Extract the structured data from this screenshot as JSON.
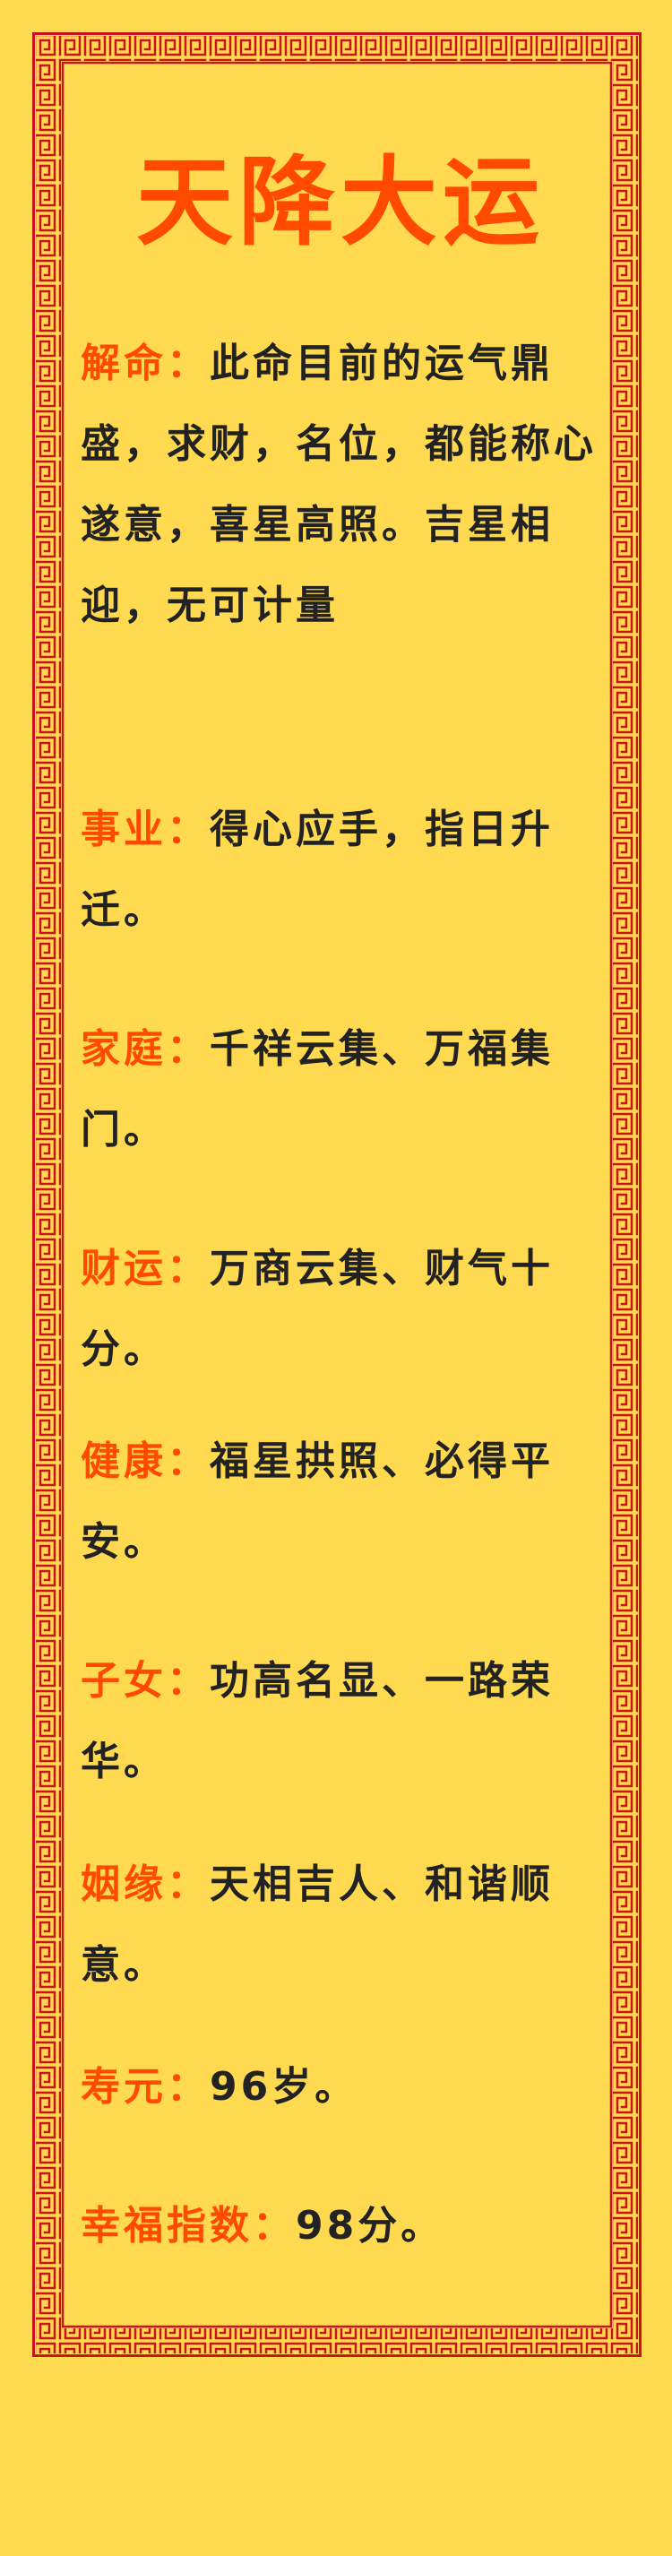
{
  "title": "天降大运",
  "sections": [
    {
      "label": "解命",
      "colon": "：",
      "text": "此命目前的运气鼎盛，求财，名位，都能称心遂意，喜星高照。吉星相迎，无可计量"
    },
    {
      "label": "事业",
      "colon": "：",
      "text": "得心应手，指日升迁。"
    },
    {
      "label": "家庭",
      "colon": "：",
      "text": "千祥云集、万福集门。"
    },
    {
      "label": "财运",
      "colon": "：",
      "text": "万商云集、财气十分。"
    },
    {
      "label": "健康",
      "colon": "：",
      "text": "福星拱照、必得平安。"
    },
    {
      "label": "子女",
      "colon": "：",
      "text": "功高名显、一路荣华。"
    },
    {
      "label": "姻缘",
      "colon": "：",
      "text": "天相吉人、和谐顺意。"
    },
    {
      "label": "寿元",
      "colon": "：",
      "text": "96岁。"
    },
    {
      "label": "幸福指数",
      "colon": "：",
      "text": "98分。"
    }
  ],
  "colors": {
    "background": "#FFD94F",
    "accent": "#FF4A00",
    "border": "#C8141E",
    "text": "#222222"
  }
}
